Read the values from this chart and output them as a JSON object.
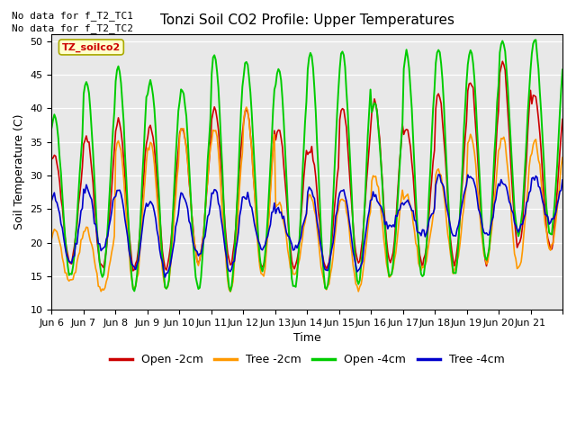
{
  "title": "Tonzi Soil CO2 Profile: Upper Temperatures",
  "ylabel": "Soil Temperature (C)",
  "xlabel": "Time",
  "ylim": [
    10,
    51
  ],
  "yticks": [
    10,
    15,
    20,
    25,
    30,
    35,
    40,
    45,
    50
  ],
  "background_color": "#e8e8e8",
  "no_data_text": [
    "No data for f_T2_TC1",
    "No data for f_T2_TC2"
  ],
  "legend_label": "TZ_soilco2",
  "legend_entries": [
    "Open -2cm",
    "Tree -2cm",
    "Open -4cm",
    "Tree -4cm"
  ],
  "legend_colors": [
    "#cc0000",
    "#ff9900",
    "#00cc00",
    "#0000cc"
  ],
  "x_labels": [
    "Jun 6",
    "Jun 7",
    "Jun 8",
    "Jun 9",
    "Jun 10",
    "Jun 11",
    "Jun 12",
    "Jun 13",
    "Jun 14",
    "Jun 15",
    "Jun 16",
    "Jun 17",
    "Jun 18",
    "Jun 19",
    "Jun 20",
    "Jun 21"
  ],
  "n_days": 16,
  "pts_per_day": 24,
  "open_2cm_peaks": [
    33,
    36,
    38,
    37,
    37,
    40,
    40,
    37,
    34,
    40,
    41,
    37,
    42,
    44,
    47,
    42
  ],
  "open_2cm_troughs": [
    17,
    16,
    16,
    16,
    17,
    17,
    16,
    16,
    16,
    17,
    17,
    17,
    17,
    17,
    19,
    19
  ],
  "tree_2cm_peaks": [
    22,
    22,
    35,
    35,
    37,
    37,
    40,
    26,
    27,
    27,
    30,
    27,
    31,
    36,
    36,
    35
  ],
  "tree_2cm_troughs": [
    14,
    13,
    13,
    13,
    17,
    13,
    15,
    15,
    13,
    13,
    15,
    16,
    16,
    17,
    16,
    19
  ],
  "open_4cm_peaks": [
    39,
    44,
    46,
    44,
    43,
    48,
    47,
    46,
    48,
    48,
    41,
    48,
    49,
    49,
    50,
    50
  ],
  "open_4cm_troughs": [
    15,
    15,
    13,
    13,
    13,
    13,
    16,
    13,
    13,
    14,
    15,
    15,
    15,
    17,
    21,
    21
  ],
  "tree_4cm_peaks": [
    27,
    28,
    28,
    26,
    27,
    28,
    27,
    25,
    28,
    28,
    27,
    26,
    30,
    30,
    29,
    30
  ],
  "tree_4cm_troughs": [
    17,
    19,
    16,
    15,
    18,
    16,
    19,
    19,
    16,
    16,
    22,
    21,
    21,
    21,
    22,
    23
  ],
  "peak_hour": 14,
  "noise_scale": 0.3
}
